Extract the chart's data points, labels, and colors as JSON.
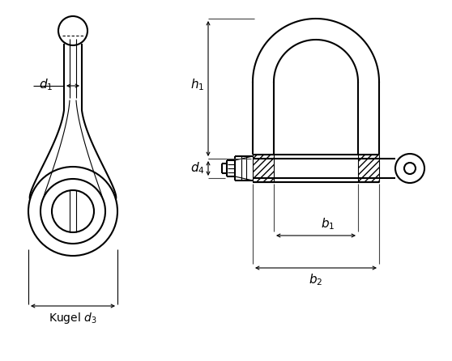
{
  "bg_color": "#ffffff",
  "line_color": "#000000",
  "lw": 1.5,
  "tlw": 0.8,
  "dim_lw": 0.8
}
